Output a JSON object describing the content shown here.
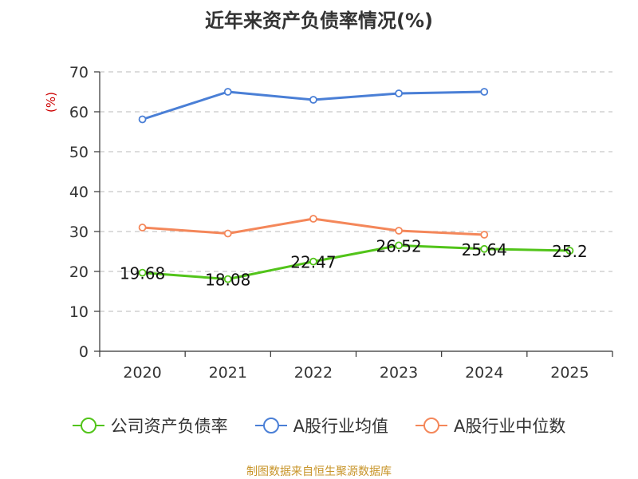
{
  "title": "近年来资产负债率情况(%)",
  "source": "制图数据来自恒生聚源数据库",
  "colors": {
    "company": "#52c41a",
    "industry_avg": "#4a7fd6",
    "industry_median": "#f4875a",
    "ylabel": "#cc0000",
    "source": "#c8952a"
  },
  "chart_data": {
    "type": "line",
    "title": "近年来资产负债率情况(%)",
    "ylabel": "(%)",
    "xlabel": "",
    "categories": [
      "2020",
      "2021",
      "2022",
      "2023",
      "2024",
      "2025"
    ],
    "ylim": [
      0,
      70
    ],
    "yticks": [
      0,
      10,
      20,
      30,
      40,
      50,
      60,
      70
    ],
    "grid": true,
    "legend_position": "bottom",
    "series": [
      {
        "name": "公司资产负债率",
        "values": [
          19.68,
          18.08,
          22.47,
          26.52,
          25.64,
          25.2
        ],
        "labels": [
          "19.68",
          "18.08",
          "22.47",
          "26.52",
          "25.64",
          "25.2"
        ]
      },
      {
        "name": "A股行业均值",
        "values": [
          58.1,
          65.0,
          63.0,
          64.6,
          65.0,
          null
        ]
      },
      {
        "name": "A股行业中位数",
        "values": [
          31.0,
          29.5,
          33.2,
          30.2,
          29.2,
          null
        ]
      }
    ]
  }
}
